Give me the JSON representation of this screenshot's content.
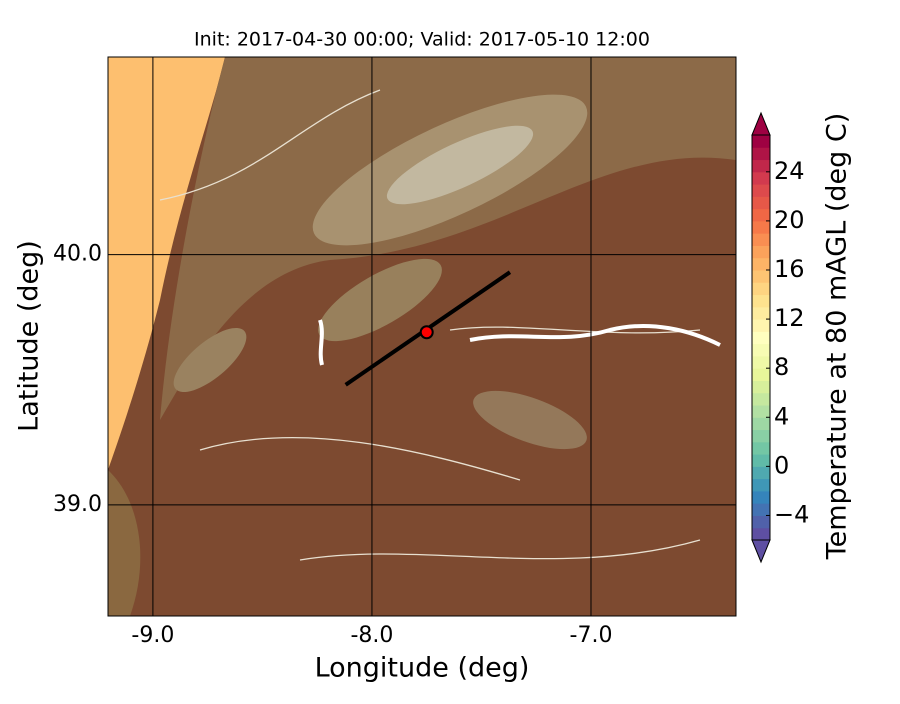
{
  "chart_data": {
    "type": "map",
    "title": "Init: 2017-04-30 00:00; Valid: 2017-05-10 12:00",
    "x_label": "Longitude (deg)",
    "y_label": "Latitude (deg)",
    "xlim": [
      -9.205,
      -6.338
    ],
    "ylim": [
      38.556,
      40.79
    ],
    "xticks": [
      {
        "value": -9,
        "label": "-9.0"
      },
      {
        "value": -8,
        "label": "-8.0"
      },
      {
        "value": -7,
        "label": "-7.0"
      }
    ],
    "yticks": [
      {
        "value": 39,
        "label": "39.0"
      },
      {
        "value": 40,
        "label": "40.0"
      }
    ],
    "grid": true,
    "transect": {
      "color": "#000000",
      "lon": [
        -8.12,
        -7.37
      ],
      "lat": [
        39.48,
        39.93
      ]
    },
    "point": {
      "color": "#ff0000",
      "lon": -7.75,
      "lat": 39.69
    },
    "colorbar": {
      "label": "Temperature at 80 mAGL (deg C)",
      "clim": [
        -6,
        27
      ],
      "ticks": [
        {
          "value": -4,
          "label": "−4"
        },
        0,
        4,
        8,
        12,
        16,
        20,
        24
      ],
      "colors": [
        "#5e4fa2",
        "#3288bd",
        "#66c2a5",
        "#abdda4",
        "#e6f598",
        "#ffffbf",
        "#fee08b",
        "#fdae61",
        "#f46d43",
        "#d53e4f",
        "#9e0142"
      ]
    }
  }
}
